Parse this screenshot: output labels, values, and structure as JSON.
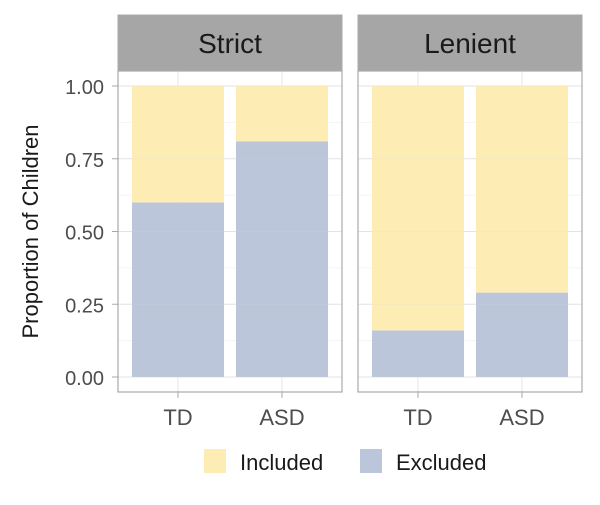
{
  "chart_data": {
    "type": "bar",
    "stacked": true,
    "ylabel": "Proportion of Children",
    "xlabel": "",
    "ylim": [
      0,
      1
    ],
    "yticks": [
      "0.00",
      "0.25",
      "0.50",
      "0.75",
      "1.00"
    ],
    "ytick_values": [
      0,
      0.25,
      0.5,
      0.75,
      1.0
    ],
    "categories": [
      "TD",
      "ASD"
    ],
    "grid": true,
    "legend_position": "bottom",
    "colors": {
      "Included": "#FDEDB4",
      "Excluded": "#BCC6DA"
    },
    "facets": [
      {
        "title": "Strict",
        "series": [
          {
            "name": "Excluded",
            "values": [
              0.6,
              0.81
            ]
          },
          {
            "name": "Included",
            "values": [
              0.4,
              0.19
            ]
          }
        ]
      },
      {
        "title": "Lenient",
        "series": [
          {
            "name": "Excluded",
            "values": [
              0.16,
              0.29
            ]
          },
          {
            "name": "Included",
            "values": [
              0.84,
              0.71
            ]
          }
        ]
      }
    ],
    "legend": [
      {
        "name": "Included",
        "color": "#FDEDB4"
      },
      {
        "name": "Excluded",
        "color": "#BCC6DA"
      }
    ]
  }
}
